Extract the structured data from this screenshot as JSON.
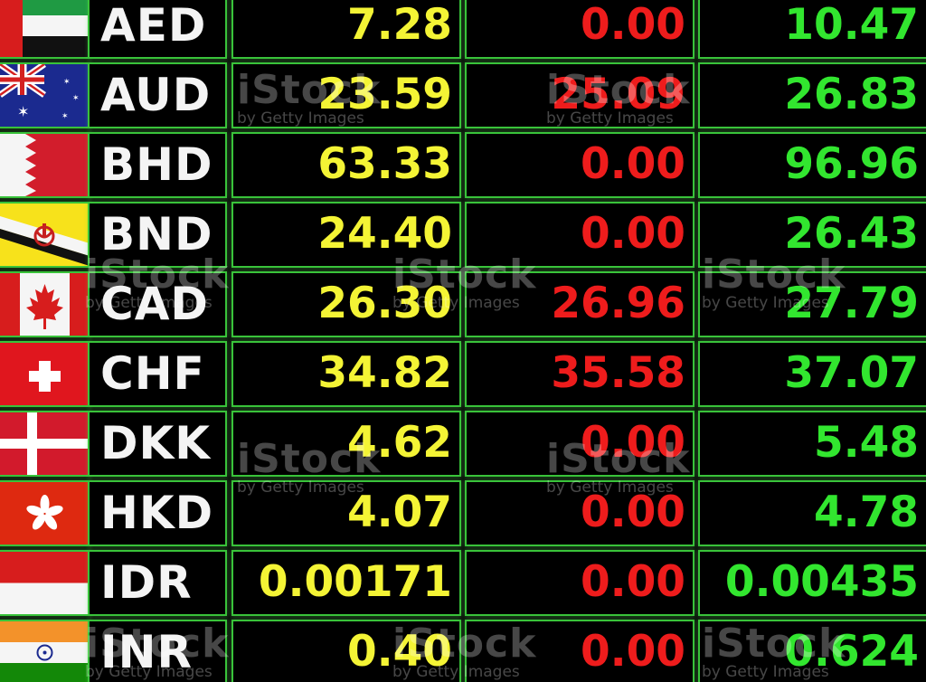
{
  "rates": [
    {
      "code": "AED",
      "flag": "uae-flag",
      "buy": "7.28",
      "sell": "0.00",
      "mid": "10.47"
    },
    {
      "code": "AUD",
      "flag": "australia-flag",
      "buy": "23.59",
      "sell": "25.09",
      "mid": "26.83"
    },
    {
      "code": "BHD",
      "flag": "bahrain-flag",
      "buy": "63.33",
      "sell": "0.00",
      "mid": "96.96"
    },
    {
      "code": "BND",
      "flag": "brunei-flag",
      "buy": "24.40",
      "sell": "0.00",
      "mid": "26.43"
    },
    {
      "code": "CAD",
      "flag": "canada-flag",
      "buy": "26.30",
      "sell": "26.96",
      "mid": "27.79"
    },
    {
      "code": "CHF",
      "flag": "switzerland-flag",
      "buy": "34.82",
      "sell": "35.58",
      "mid": "37.07"
    },
    {
      "code": "DKK",
      "flag": "denmark-flag",
      "buy": "4.62",
      "sell": "0.00",
      "mid": "5.48"
    },
    {
      "code": "HKD",
      "flag": "hong-kong-flag",
      "buy": "4.07",
      "sell": "0.00",
      "mid": "4.78"
    },
    {
      "code": "IDR",
      "flag": "indonesia-flag",
      "buy": "0.00171",
      "sell": "0.00",
      "mid": "0.00435"
    },
    {
      "code": "INR",
      "flag": "india-flag",
      "buy": "0.40",
      "sell": "0.00",
      "mid": "0.624"
    }
  ],
  "colors": {
    "buy": "#f4f435",
    "sell": "#ee1c1c",
    "mid": "#32e62f",
    "grid": "#39c33a"
  },
  "watermark": {
    "brand": "iStock",
    "sub": "by Getty Images"
  }
}
